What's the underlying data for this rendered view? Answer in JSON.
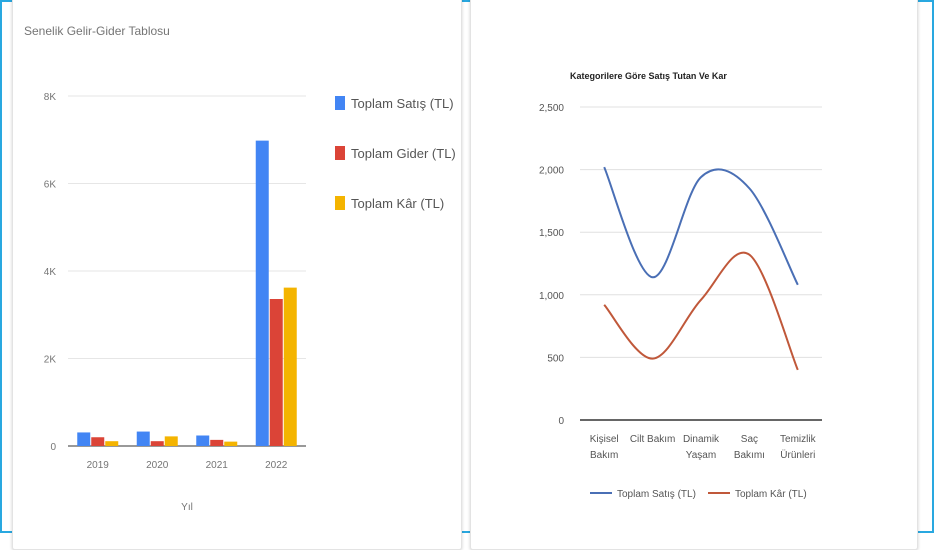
{
  "chart_data": [
    {
      "type": "bar",
      "title": "Senelik Gelir-Gider Tablosu",
      "xlabel": "Yıl",
      "ylabel": "",
      "categories": [
        "2019",
        "2020",
        "2021",
        "2022"
      ],
      "ylim": [
        0,
        8000
      ],
      "yticks": [
        "0",
        "2K",
        "4K",
        "6K",
        "8K"
      ],
      "series": [
        {
          "name": "Toplam Satış (TL)",
          "color": "#4285f4",
          "values": [
            310,
            330,
            240,
            6980
          ]
        },
        {
          "name": "Toplam Gider (TL)",
          "color": "#db4437",
          "values": [
            200,
            110,
            140,
            3360
          ]
        },
        {
          "name": "Toplam Kâr (TL)",
          "color": "#f4b400",
          "values": [
            110,
            220,
            100,
            3620
          ]
        }
      ],
      "legend": "right",
      "grid": true
    },
    {
      "type": "line",
      "title": "Kategorilere Göre Satış Tutan Ve Kar",
      "xlabel": "",
      "ylabel": "",
      "categories": [
        [
          "Kişisel",
          "Bakım"
        ],
        [
          "Cilt Bakım"
        ],
        [
          "Dinamik",
          "Yaşam"
        ],
        [
          "Saç",
          "Bakımı"
        ],
        [
          "Temizlik",
          "Ürünleri"
        ]
      ],
      "ylim": [
        0,
        2500
      ],
      "yticks": [
        "0",
        "500",
        "1,000",
        "1,500",
        "2,000",
        "2,500"
      ],
      "series": [
        {
          "name": "Toplam Satış (TL)",
          "color": "#4a6fb5",
          "values": [
            2020,
            1140,
            1940,
            1850,
            1080
          ]
        },
        {
          "name": "Toplam Kâr (TL)",
          "color": "#c0583a",
          "values": [
            920,
            490,
            960,
            1320,
            400
          ]
        }
      ],
      "legend": "bottom",
      "grid": true,
      "smooth": true
    }
  ]
}
